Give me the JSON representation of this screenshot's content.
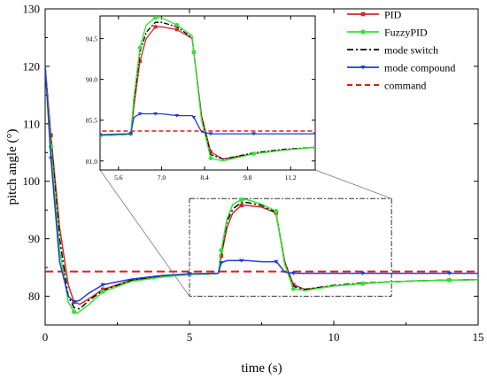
{
  "chart_data": {
    "type": "line",
    "title": "",
    "xlabel": "time (s)",
    "ylabel": "pitch angle (°)",
    "xlim": [
      0,
      15
    ],
    "ylim": [
      75,
      130
    ],
    "xticks": [
      "0",
      "5",
      "10",
      "15"
    ],
    "yticks": [
      "80",
      "90",
      "100",
      "110",
      "120",
      "130"
    ],
    "legend_position": "top-right",
    "series": [
      {
        "name": "PID",
        "color": "#d62728",
        "line": "solid",
        "marker": "square",
        "x": [
          0,
          0.2,
          0.5,
          0.8,
          1.0,
          1.2,
          1.5,
          2.0,
          3.0,
          4.0,
          5.0,
          5.8,
          6.0,
          6.1,
          6.3,
          6.5,
          6.8,
          7.0,
          7.5,
          8.0,
          8.05,
          8.3,
          8.6,
          9.0,
          10.0,
          11.0,
          12.0,
          13.0,
          14.0,
          15.0
        ],
        "y": [
          120,
          108,
          92,
          82,
          79,
          78.6,
          79.5,
          81.2,
          82.8,
          83.4,
          83.8,
          83.9,
          84.0,
          87.0,
          92.0,
          94.5,
          95.8,
          95.8,
          95.5,
          94.5,
          93.0,
          86.0,
          82.0,
          81.2,
          81.8,
          82.2,
          82.5,
          82.7,
          82.8,
          82.9
        ]
      },
      {
        "name": "FuzzyPID",
        "color": "#2ee62e",
        "line": "solid",
        "marker": "circle",
        "x": [
          0,
          0.2,
          0.5,
          0.8,
          1.0,
          1.1,
          1.5,
          2.0,
          3.0,
          4.0,
          5.0,
          5.8,
          6.0,
          6.1,
          6.3,
          6.5,
          6.8,
          7.0,
          7.5,
          8.0,
          8.05,
          8.3,
          8.6,
          9.0,
          10.0,
          11.0,
          12.0,
          13.0,
          14.0,
          15.0
        ],
        "y": [
          120,
          106,
          88,
          79,
          77.3,
          77.0,
          78.5,
          80.8,
          82.6,
          83.3,
          83.8,
          83.9,
          84.0,
          88.0,
          93.5,
          96.0,
          96.8,
          96.8,
          96.0,
          94.8,
          93.0,
          85.5,
          81.3,
          81.0,
          81.8,
          82.2,
          82.5,
          82.7,
          82.8,
          82.9
        ]
      },
      {
        "name": "mode switch",
        "color": "#000000",
        "line": "dashdot",
        "marker": "none",
        "x": [
          0,
          0.2,
          0.5,
          0.8,
          1.0,
          1.2,
          1.5,
          2.0,
          3.0,
          4.0,
          5.0,
          5.8,
          6.0,
          6.1,
          6.3,
          6.5,
          6.8,
          7.0,
          7.5,
          8.0,
          8.05,
          8.3,
          8.6,
          9.0,
          10.0,
          11.0,
          12.0,
          13.0,
          14.0,
          15.0
        ],
        "y": [
          120,
          107,
          90,
          80,
          78,
          77.8,
          79.2,
          81.0,
          82.8,
          83.4,
          83.8,
          83.9,
          84.0,
          87.5,
          93.0,
          95.2,
          96.3,
          96.3,
          95.8,
          94.6,
          93.0,
          85.8,
          81.7,
          81.2,
          81.9,
          82.3,
          82.5,
          82.7,
          82.8,
          82.9
        ]
      },
      {
        "name": "mode compound",
        "color": "#1f3bd6",
        "line": "solid",
        "marker": "triangle-down",
        "x": [
          0,
          0.2,
          0.5,
          0.8,
          1.0,
          1.2,
          1.5,
          2.0,
          3.0,
          4.0,
          5.0,
          5.8,
          6.0,
          6.1,
          6.3,
          6.5,
          6.8,
          7.0,
          7.5,
          8.0,
          8.05,
          8.3,
          8.6,
          9.0,
          10.0,
          11.0,
          12.0,
          13.0,
          14.0,
          15.0
        ],
        "y": [
          120,
          104,
          86,
          80,
          79,
          79.3,
          80.5,
          82.0,
          83.0,
          83.6,
          83.9,
          84.0,
          84.0,
          85.8,
          86.2,
          86.2,
          86.2,
          86.2,
          86.0,
          86.0,
          85.8,
          84.2,
          84.0,
          84.0,
          84.0,
          84.0,
          84.0,
          84.0,
          84.0,
          84.0
        ]
      },
      {
        "name": "command",
        "color": "#e31a1c",
        "line": "dashed",
        "marker": "none",
        "x": [
          0,
          15
        ],
        "y": [
          84.3,
          84.3
        ]
      }
    ],
    "inset": {
      "xlim": [
        5.0,
        12.0
      ],
      "ylim": [
        80.0,
        97.0
      ],
      "xticks": [
        "5.6",
        "7.0",
        "8.4",
        "9.8",
        "11.2"
      ],
      "yticks": [
        "81.0",
        "85.5",
        "90.0",
        "94.5"
      ]
    }
  }
}
